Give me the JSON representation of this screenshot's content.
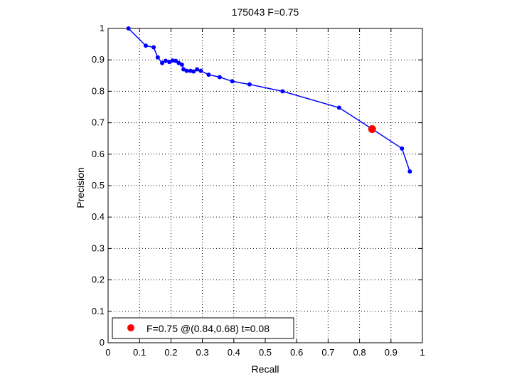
{
  "chart_data": {
    "type": "line",
    "title": "175043 F=0.75",
    "xlabel": "Recall",
    "ylabel": "Precision",
    "xlim": [
      0,
      1
    ],
    "ylim": [
      0,
      1
    ],
    "xticks": [
      "0",
      "0.1",
      "0.2",
      "0.3",
      "0.4",
      "0.5",
      "0.6",
      "0.7",
      "0.8",
      "0.9",
      "1"
    ],
    "yticks": [
      "0",
      "0.1",
      "0.2",
      "0.3",
      "0.4",
      "0.5",
      "0.6",
      "0.7",
      "0.8",
      "0.9",
      "1"
    ],
    "grid": true,
    "series": [
      {
        "color": "#0000ff",
        "marker": "dot",
        "points": [
          [
            0.065,
            1.0
          ],
          [
            0.12,
            0.945
          ],
          [
            0.145,
            0.94
          ],
          [
            0.158,
            0.908
          ],
          [
            0.172,
            0.89
          ],
          [
            0.183,
            0.897
          ],
          [
            0.195,
            0.893
          ],
          [
            0.205,
            0.898
          ],
          [
            0.215,
            0.897
          ],
          [
            0.225,
            0.89
          ],
          [
            0.235,
            0.885
          ],
          [
            0.24,
            0.87
          ],
          [
            0.25,
            0.865
          ],
          [
            0.262,
            0.865
          ],
          [
            0.272,
            0.863
          ],
          [
            0.283,
            0.87
          ],
          [
            0.295,
            0.865
          ],
          [
            0.32,
            0.853
          ],
          [
            0.355,
            0.845
          ],
          [
            0.395,
            0.832
          ],
          [
            0.45,
            0.822
          ],
          [
            0.555,
            0.8
          ],
          [
            0.735,
            0.748
          ],
          [
            0.84,
            0.68
          ],
          [
            0.935,
            0.618
          ],
          [
            0.96,
            0.545
          ]
        ]
      }
    ],
    "highlight": {
      "x": 0.84,
      "y": 0.68,
      "color": "#ff0000"
    },
    "legend": {
      "position": "bottom-left",
      "entries": [
        {
          "label": "F=0.75 @(0.84,0.68) t=0.08",
          "color": "#ff0000"
        }
      ]
    }
  }
}
